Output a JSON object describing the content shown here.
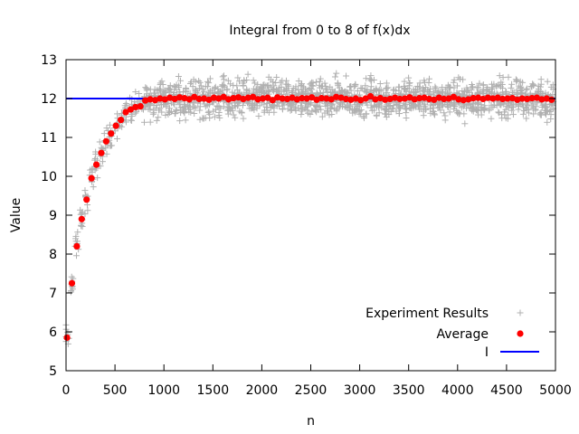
{
  "chart_data": {
    "type": "scatter",
    "title": "Integral from 0 to 8 of f(x)dx",
    "xlabel": "n",
    "ylabel": "Value",
    "xlim": [
      0,
      5000
    ],
    "ylim": [
      5,
      13
    ],
    "x_ticks": [
      0,
      500,
      1000,
      1500,
      2000,
      2500,
      3000,
      3500,
      4000,
      4500,
      5000
    ],
    "y_ticks": [
      5,
      6,
      7,
      8,
      9,
      10,
      11,
      12,
      13
    ],
    "grid": false,
    "legend_position": "bottom-right",
    "series": [
      {
        "name": "Experiment Results",
        "marker": "plus",
        "color": "#b0b0b0",
        "description_of_values": "many individual experiment values scattered around each average, spread roughly ±0.5",
        "spread": 0.5
      },
      {
        "name": "Average",
        "marker": "circle",
        "color": "#ff0000",
        "x": [
          10,
          60,
          110,
          160,
          210,
          260,
          310,
          360,
          410,
          460,
          510,
          560,
          610,
          660,
          710,
          760,
          810,
          860,
          910,
          960,
          1010,
          1060,
          1110,
          1160,
          1210,
          1260,
          1310,
          1360,
          1410,
          1460,
          1510,
          1560,
          1610,
          1660,
          1710,
          1760,
          1810,
          1860,
          1910,
          1960,
          2010,
          2060,
          2110,
          2160,
          2210,
          2260,
          2310,
          2360,
          2410,
          2460,
          2510,
          2560,
          2610,
          2660,
          2710,
          2760,
          2810,
          2860,
          2910,
          2960,
          3010,
          3060,
          3110,
          3160,
          3210,
          3260,
          3310,
          3360,
          3410,
          3460,
          3510,
          3560,
          3610,
          3660,
          3710,
          3760,
          3810,
          3860,
          3910,
          3960,
          4010,
          4060,
          4110,
          4160,
          4210,
          4260,
          4310,
          4360,
          4410,
          4460,
          4510,
          4560,
          4610,
          4660,
          4710,
          4760,
          4810,
          4860,
          4910,
          4960
        ],
        "y": [
          5.85,
          7.25,
          8.2,
          8.9,
          9.4,
          9.95,
          10.3,
          10.6,
          10.9,
          11.1,
          11.3,
          11.45,
          11.65,
          11.72,
          11.78,
          11.8,
          11.95,
          11.98,
          11.96,
          12.0,
          11.98,
          12.02,
          11.99,
          12.03,
          12.01,
          11.98,
          12.04,
          11.99,
          12.0,
          11.97,
          12.02,
          12.0,
          12.04,
          11.98,
          12.01,
          12.03,
          11.99,
          12.02,
          12.04,
          11.98,
          12.0,
          12.02,
          11.96,
          12.03,
          12.0,
          11.99,
          12.02,
          11.98,
          12.01,
          12.0,
          12.03,
          11.97,
          12.01,
          12.0,
          11.98,
          12.04,
          12.02,
          11.99,
          11.97,
          12.0,
          11.96,
          12.0,
          12.06,
          11.98,
          12.01,
          11.97,
          11.99,
          12.02,
          11.99,
          12.0,
          12.03,
          11.98,
          12.01,
          12.02,
          11.99,
          11.97,
          12.02,
          11.99,
          12.0,
          12.04,
          11.98,
          11.96,
          11.98,
          12.01,
          12.02,
          11.99,
          12.02,
          12.0,
          12.02,
          11.99,
          12.0,
          12.01,
          11.97,
          12.0,
          11.99,
          12.01,
          12.02,
          11.98,
          12.0,
          11.97
        ]
      },
      {
        "name": "I",
        "type": "line",
        "color": "#0000ff",
        "x": [
          0,
          5000
        ],
        "y": [
          12,
          12
        ]
      }
    ]
  }
}
